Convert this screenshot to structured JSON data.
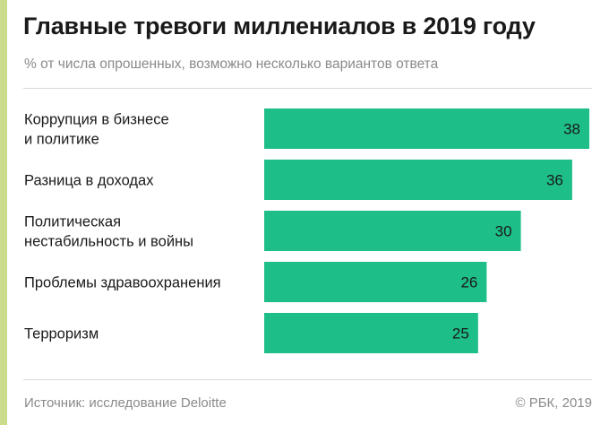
{
  "header": {
    "title": "Главные тревоги миллениалов в 2019 году",
    "subtitle": "% от числа опрошенных, возможно несколько вариантов ответа"
  },
  "footer": {
    "source": "Источник: исследование Deloitte",
    "copyright": "© РБК, 2019"
  },
  "colors": {
    "bar": "#1ebe88",
    "accent_stripe": "#c9dc8c",
    "text": "#1a1a1a",
    "muted_text": "#8a8a8a"
  },
  "chart_data": {
    "type": "bar",
    "orientation": "horizontal",
    "categories": [
      [
        "Коррупция в бизнесе",
        "и политике"
      ],
      [
        "Разница в доходах"
      ],
      [
        "Политическая",
        "нестабильность и войны"
      ],
      [
        "Проблемы здравоохранения"
      ],
      [
        "Терроризм"
      ]
    ],
    "values": [
      38,
      36,
      30,
      26,
      25
    ],
    "xlim": [
      0,
      38
    ],
    "grid": false,
    "legend": "none"
  }
}
